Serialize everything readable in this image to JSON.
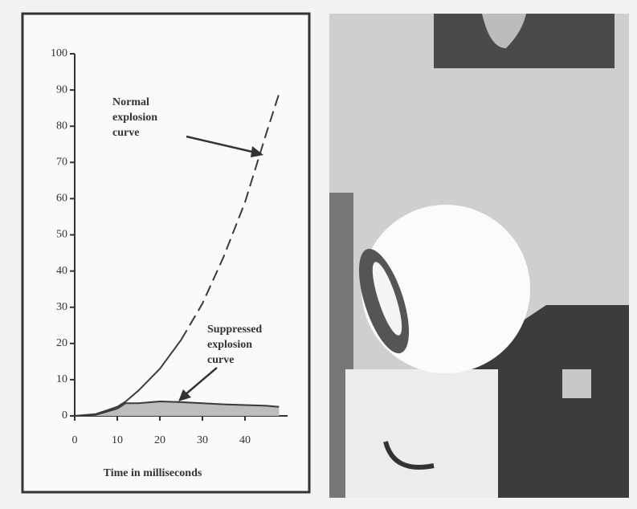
{
  "chart_data": {
    "type": "line",
    "x": [
      0,
      5,
      10,
      12,
      15,
      20,
      25,
      30,
      35,
      40,
      45,
      48
    ],
    "series": [
      {
        "color": "#3a3a3a",
        "dash": false,
        "fill": false,
        "values": [
          0,
          0.5,
          2.5,
          4,
          7,
          13,
          21,
          null,
          null,
          null,
          null,
          null
        ]
      },
      {
        "color": "#3a3a3a",
        "dash": true,
        "fill": false,
        "values": [
          null,
          null,
          null,
          null,
          null,
          null,
          21,
          31,
          44,
          59,
          78,
          89
        ]
      },
      {
        "color": "#3a3a3a",
        "dash": false,
        "fill": true,
        "values": [
          0,
          0.3,
          2,
          3.5,
          3.5,
          4,
          3.8,
          3.5,
          3.2,
          3,
          2.8,
          2.5
        ]
      }
    ],
    "xlim": [
      0,
      50
    ],
    "ylim": [
      0,
      100
    ],
    "xticks": [
      0,
      10,
      20,
      30,
      40
    ],
    "yticks": [
      0,
      10,
      20,
      30,
      40,
      50,
      60,
      70,
      80,
      90,
      100
    ],
    "xlabel": "Time in milliseconds",
    "annotations": [
      {
        "lines": [
          "Normal",
          "explosion",
          "curve"
        ]
      },
      {
        "lines": [
          "Suppressed",
          "explosion",
          "curve"
        ]
      }
    ]
  }
}
